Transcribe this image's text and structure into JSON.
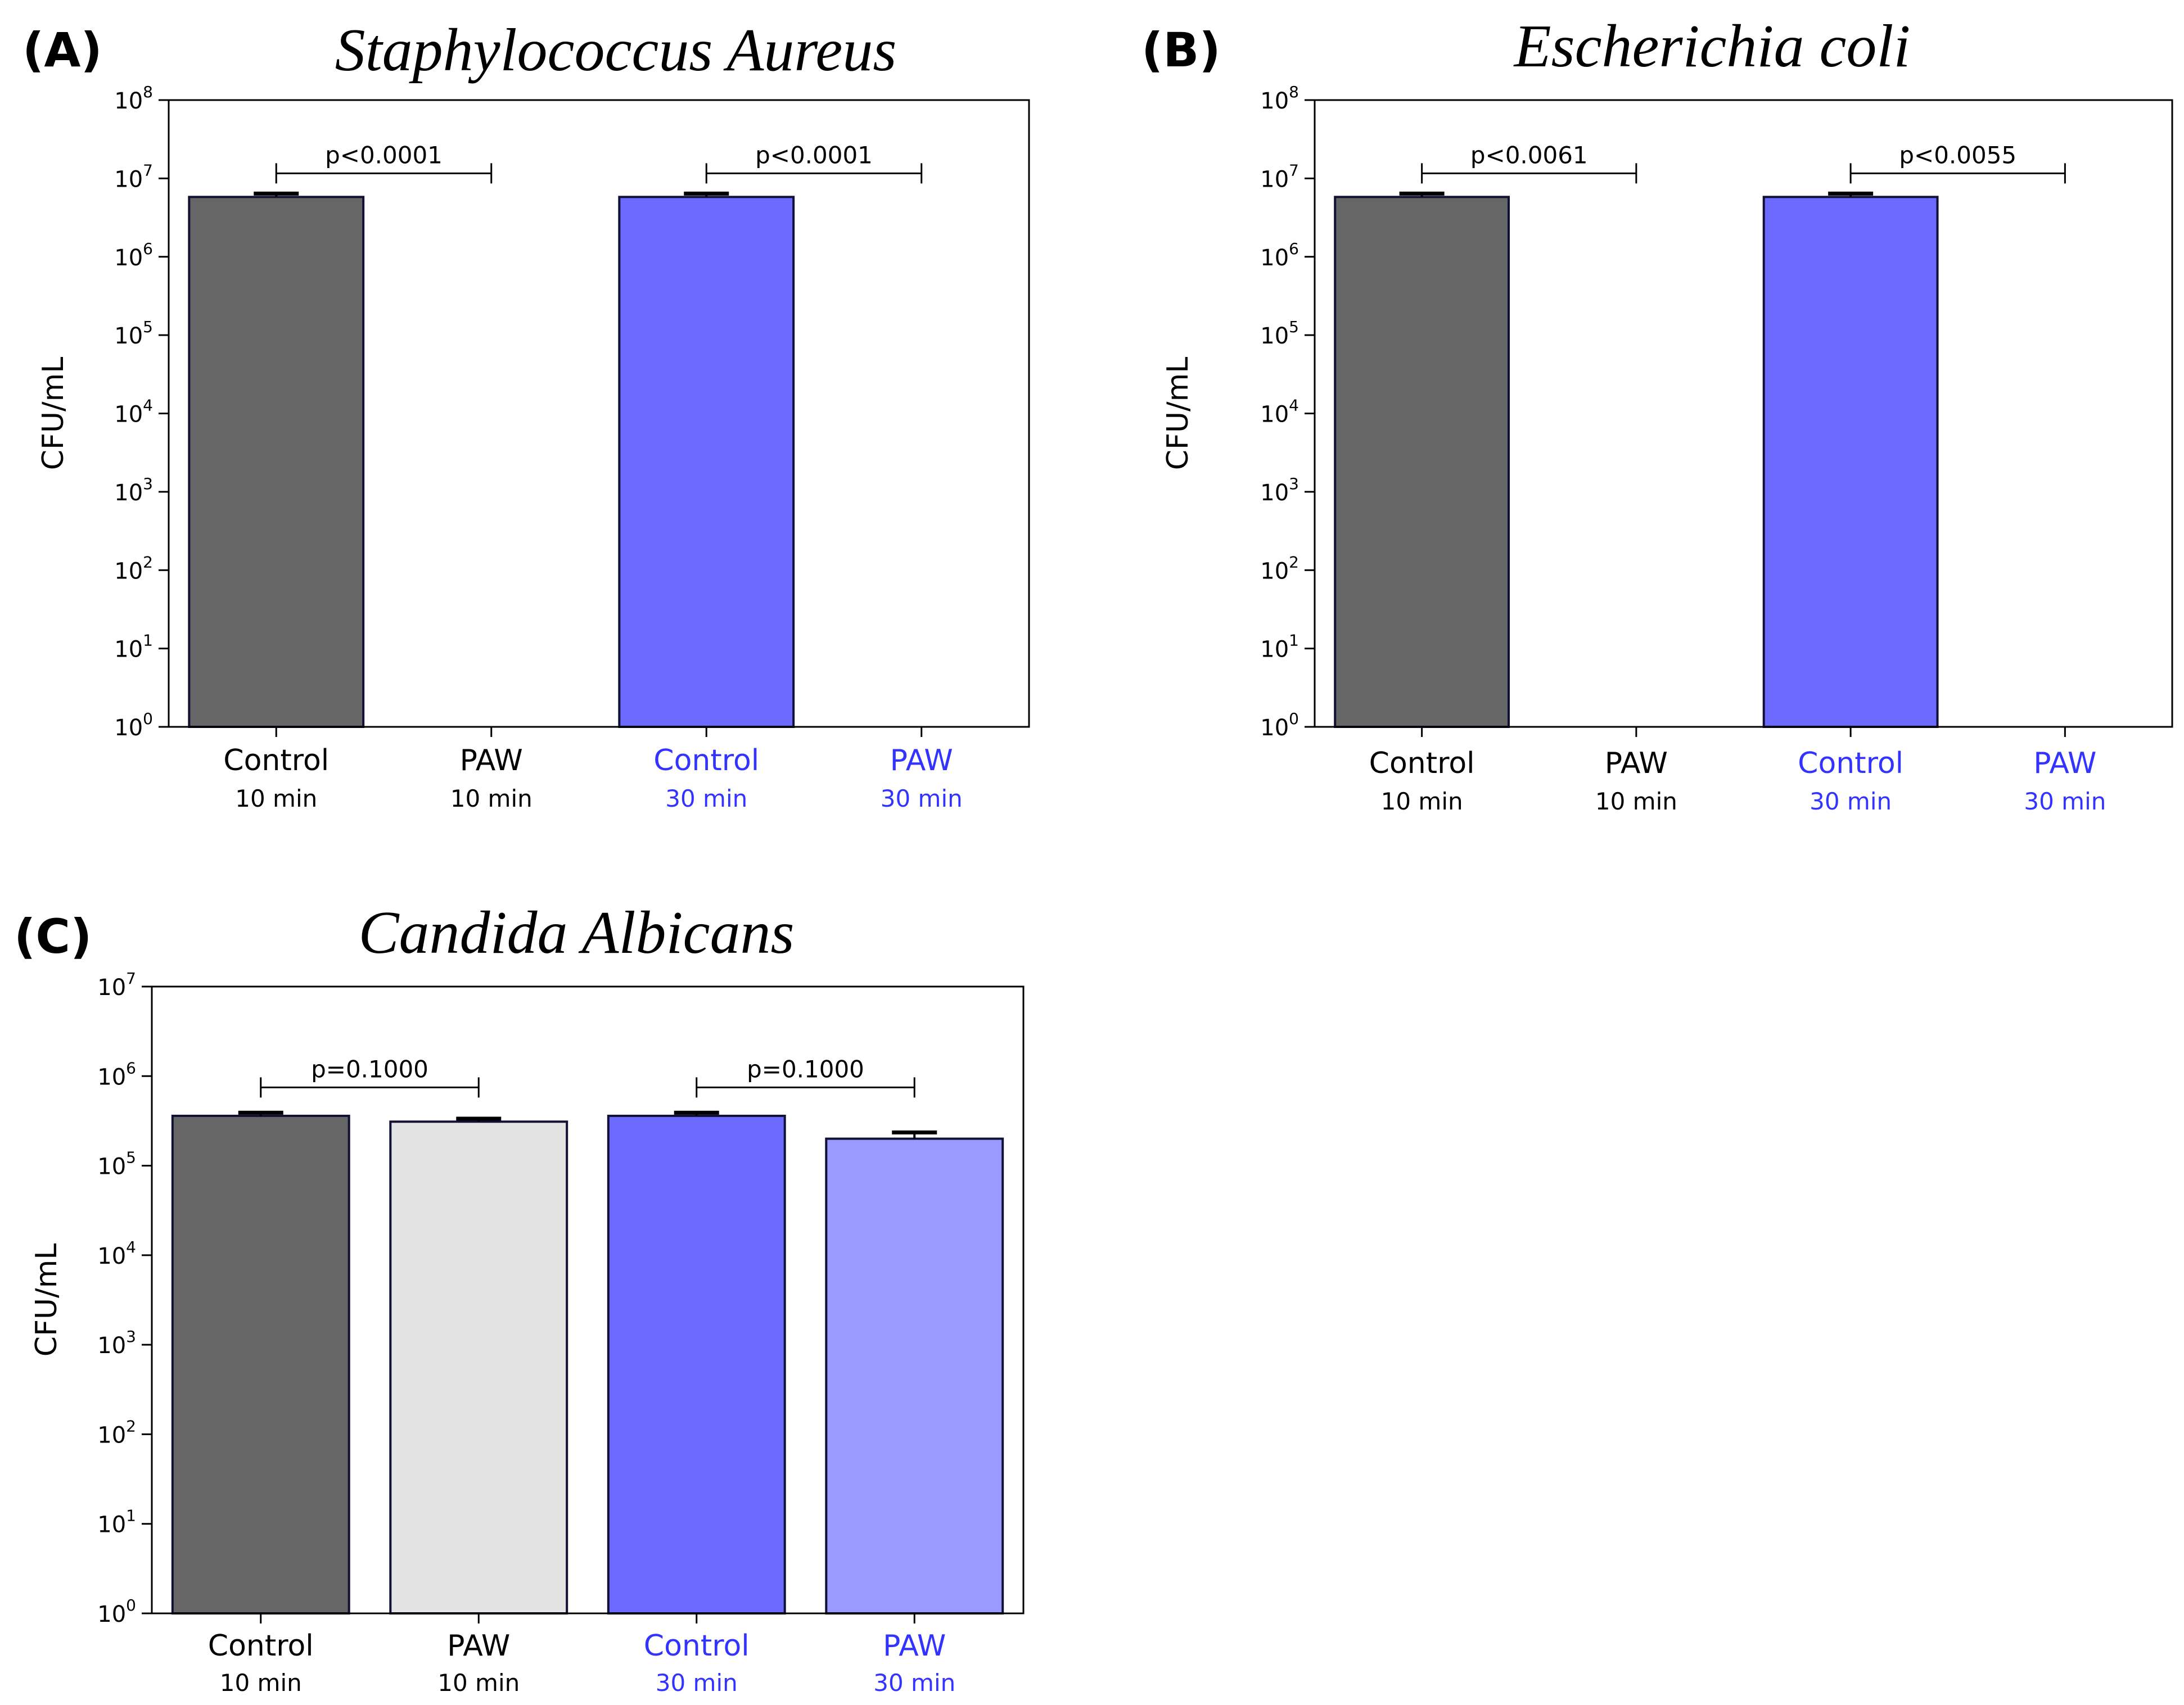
{
  "chart_data": [
    {
      "type": "bar",
      "panel_label": "(A)",
      "title": "Staphylococcus Aureus",
      "ylabel": "CFU/mL",
      "yscale": "log",
      "ylim": [
        1,
        100000000
      ],
      "yticks": [
        {
          "base": "10",
          "exp": "0"
        },
        {
          "base": "10",
          "exp": "1"
        },
        {
          "base": "10",
          "exp": "2"
        },
        {
          "base": "10",
          "exp": "3"
        },
        {
          "base": "10",
          "exp": "4"
        },
        {
          "base": "10",
          "exp": "5"
        },
        {
          "base": "10",
          "exp": "6"
        },
        {
          "base": "10",
          "exp": "7"
        },
        {
          "base": "10",
          "exp": "8"
        }
      ],
      "categories": [
        {
          "line1": "Control",
          "line2": "10 min",
          "color": "#000000"
        },
        {
          "line1": "PAW",
          "line2": "10 min",
          "color": "#000000"
        },
        {
          "line1": "Control",
          "line2": "30 min",
          "color": "#3333ff"
        },
        {
          "line1": "PAW",
          "line2": "30 min",
          "color": "#3333ff"
        }
      ],
      "values": [
        5800000,
        1,
        5800000,
        1
      ],
      "errors": [
        600000,
        0,
        600000,
        0
      ],
      "bar_colors": [
        "#666666",
        "#e3e3e3",
        "#6a6aff",
        "#9999ff"
      ],
      "significance": [
        {
          "from": 0,
          "to": 1,
          "label": "p<0.0001"
        },
        {
          "from": 2,
          "to": 3,
          "label": "p<0.0001"
        }
      ]
    },
    {
      "type": "bar",
      "panel_label": "(B)",
      "title": "Escherichia coli",
      "ylabel": "CFU/mL",
      "yscale": "log",
      "ylim": [
        1,
        100000000
      ],
      "yticks": [
        {
          "base": "10",
          "exp": "0"
        },
        {
          "base": "10",
          "exp": "1"
        },
        {
          "base": "10",
          "exp": "2"
        },
        {
          "base": "10",
          "exp": "3"
        },
        {
          "base": "10",
          "exp": "4"
        },
        {
          "base": "10",
          "exp": "5"
        },
        {
          "base": "10",
          "exp": "6"
        },
        {
          "base": "10",
          "exp": "7"
        },
        {
          "base": "10",
          "exp": "8"
        }
      ],
      "categories": [
        {
          "line1": "Control",
          "line2": "10 min",
          "color": "#000000"
        },
        {
          "line1": "PAW",
          "line2": "10 min",
          "color": "#000000"
        },
        {
          "line1": "Control",
          "line2": "30 min",
          "color": "#3333ff"
        },
        {
          "line1": "PAW",
          "line2": "30 min",
          "color": "#3333ff"
        }
      ],
      "values": [
        5800000,
        1,
        5800000,
        1
      ],
      "errors": [
        600000,
        0,
        600000,
        0
      ],
      "bar_colors": [
        "#666666",
        "#e3e3e3",
        "#6a6aff",
        "#9999ff"
      ],
      "significance": [
        {
          "from": 0,
          "to": 1,
          "label": "p<0.0061"
        },
        {
          "from": 2,
          "to": 3,
          "label": "p<0.0055"
        }
      ]
    },
    {
      "type": "bar",
      "panel_label": "(C)",
      "title": "Candida Albicans",
      "ylabel": "CFU/mL",
      "yscale": "log",
      "ylim": [
        1,
        10000000
      ],
      "yticks": [
        {
          "base": "10",
          "exp": "0"
        },
        {
          "base": "10",
          "exp": "1"
        },
        {
          "base": "10",
          "exp": "2"
        },
        {
          "base": "10",
          "exp": "3"
        },
        {
          "base": "10",
          "exp": "4"
        },
        {
          "base": "10",
          "exp": "5"
        },
        {
          "base": "10",
          "exp": "6"
        },
        {
          "base": "10",
          "exp": "7"
        }
      ],
      "categories": [
        {
          "line1": "Control",
          "line2": "10 min",
          "color": "#000000"
        },
        {
          "line1": "PAW",
          "line2": "10 min",
          "color": "#000000"
        },
        {
          "line1": "Control",
          "line2": "30 min",
          "color": "#3333ff"
        },
        {
          "line1": "PAW",
          "line2": "30 min",
          "color": "#3333ff"
        }
      ],
      "values": [
        360000,
        310000,
        360000,
        200000
      ],
      "errors": [
        30000,
        25000,
        30000,
        35000
      ],
      "bar_colors": [
        "#666666",
        "#e3e3e3",
        "#6a6aff",
        "#9999ff"
      ],
      "significance": [
        {
          "from": 0,
          "to": 1,
          "label": "p=0.1000"
        },
        {
          "from": 2,
          "to": 3,
          "label": "p=0.1000"
        }
      ]
    }
  ]
}
